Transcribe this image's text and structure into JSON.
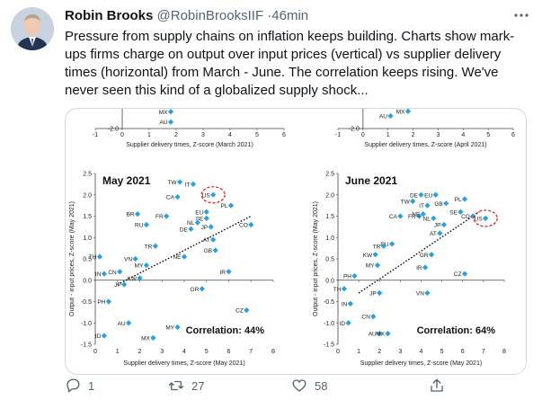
{
  "tweet": {
    "author_name": "Robin Brooks",
    "author_handle": "@RobinBrooksIIF",
    "separator": "·",
    "time": "46min",
    "text": "Pressure from supply chains on inflation keeps building. Charts show mark-ups firms charge on output over input prices (vertical) vs supplier delivery times (horizontal) from March - June. The correlation keeps rising. We've never seen this kind of a globalized supply shock...",
    "replies": "1",
    "retweets": "27",
    "likes": "58"
  },
  "icons": [
    "avatar",
    "more-icon",
    "reply-icon",
    "retweet-icon",
    "like-icon",
    "share-icon"
  ],
  "colors": {
    "marker": "#2aa0e0",
    "trend": "#000000",
    "highlight": "#e02020",
    "text": "#0f1419",
    "muted": "#536471"
  },
  "chart_data": [
    {
      "type": "scatter",
      "title": "",
      "xlabel": "Supplier delivery times, Z-score (March 2021)",
      "ylabel": "",
      "xlim": [
        -1,
        6
      ],
      "ylim": [
        -2.0,
        -1.5
      ],
      "xticks": [
        "-1",
        "0",
        "1",
        "2",
        "3",
        "4",
        "5",
        "6"
      ],
      "yticks": [
        "-1.5",
        "-2.0"
      ],
      "points": [
        {
          "label": "MX",
          "x": 1.8,
          "y": -1.64
        },
        {
          "label": "AU",
          "x": 1.8,
          "y": -1.86
        }
      ]
    },
    {
      "type": "scatter",
      "title": "",
      "xlabel": "Supplier delivery times, Z-score (April 2021)",
      "ylabel": "",
      "xlim": [
        -1,
        6
      ],
      "ylim": [
        -2.0,
        -1.5
      ],
      "xticks": [
        "-1",
        "0",
        "1",
        "2",
        "3",
        "4",
        "5",
        "6"
      ],
      "yticks": [
        "-1.5",
        "-2.0"
      ],
      "points": [
        {
          "label": "MX",
          "x": 1.8,
          "y": -1.63
        },
        {
          "label": "AU",
          "x": 1.1,
          "y": -1.73
        }
      ]
    },
    {
      "type": "scatter",
      "title": "May 2021",
      "xlabel": "Supplier delivery times, Z-score (May 2021)",
      "ylabel": "Output - input prices, Z-score (May 2021)",
      "annotation": "Correlation: 44%",
      "highlight": "US",
      "xlim": [
        0,
        8
      ],
      "ylim": [
        -1.5,
        2.5
      ],
      "xticks": [
        "0",
        "1",
        "2",
        "3",
        "4",
        "5",
        "6",
        "7",
        "8"
      ],
      "yticks": [
        "2.5",
        "2.0",
        "1.5",
        "1.0",
        "0.5",
        "0.0",
        "-0.5",
        "-1.0",
        "-1.5"
      ],
      "trend": {
        "x1": 1.0,
        "y1": -0.1,
        "x2": 7.0,
        "y2": 1.5
      },
      "points": [
        {
          "label": "TW",
          "x": 3.8,
          "y": 2.3
        },
        {
          "label": "IT",
          "x": 4.4,
          "y": 2.25
        },
        {
          "label": "US",
          "x": 5.3,
          "y": 2.0
        },
        {
          "label": "CA",
          "x": 3.7,
          "y": 1.95
        },
        {
          "label": "PL",
          "x": 6.1,
          "y": 1.75
        },
        {
          "label": "EU",
          "x": 5.0,
          "y": 1.6
        },
        {
          "label": "BR",
          "x": 1.9,
          "y": 1.55
        },
        {
          "label": "FR",
          "x": 3.2,
          "y": 1.5
        },
        {
          "label": "SE",
          "x": 5.0,
          "y": 1.45
        },
        {
          "label": "RU",
          "x": 2.3,
          "y": 1.3
        },
        {
          "label": "DE",
          "x": 4.3,
          "y": 1.2
        },
        {
          "label": "JP",
          "x": 5.2,
          "y": 1.25
        },
        {
          "label": "CO",
          "x": 7.0,
          "y": 1.3
        },
        {
          "label": "NL",
          "x": 4.6,
          "y": 1.35
        },
        {
          "label": "AT",
          "x": 5.3,
          "y": 0.95
        },
        {
          "label": "TR",
          "x": 2.7,
          "y": 0.8
        },
        {
          "label": "GB",
          "x": 5.4,
          "y": 0.7
        },
        {
          "label": "NE",
          "x": 4.0,
          "y": 0.55
        },
        {
          "label": "TH",
          "x": 0.2,
          "y": 0.55
        },
        {
          "label": "VN",
          "x": 1.8,
          "y": 0.5
        },
        {
          "label": "CN",
          "x": 1.1,
          "y": 0.2
        },
        {
          "label": "MY",
          "x": 2.3,
          "y": 0.35
        },
        {
          "label": "IN",
          "x": 0.4,
          "y": 0.15
        },
        {
          "label": "KW",
          "x": 2.0,
          "y": 0.05
        },
        {
          "label": "IR",
          "x": 6.0,
          "y": 0.2
        },
        {
          "label": "JP",
          "x": 1.3,
          "y": -0.1
        },
        {
          "label": "GR",
          "x": 4.8,
          "y": -0.2
        },
        {
          "label": "PH",
          "x": 0.6,
          "y": -0.5
        },
        {
          "label": "CZ",
          "x": 6.8,
          "y": -0.7
        },
        {
          "label": "AU",
          "x": 1.5,
          "y": -1.0
        },
        {
          "label": "MY",
          "x": 3.7,
          "y": -1.1
        },
        {
          "label": "MX",
          "x": 2.6,
          "y": -1.35
        },
        {
          "label": "ID",
          "x": 0.4,
          "y": -1.3
        }
      ]
    },
    {
      "type": "scatter",
      "title": "June 2021",
      "xlabel": "Supplier delivery times, Z-score (May 2021)",
      "ylabel": "Output - input prices, Z-score (May 2021)",
      "annotation": "Correlation: 64%",
      "highlight": "US",
      "xlim": [
        0,
        8
      ],
      "ylim": [
        -1.5,
        2.5
      ],
      "xticks": [
        "0",
        "1",
        "2",
        "3",
        "4",
        "5",
        "6",
        "7",
        "8"
      ],
      "yticks": [
        "2.5",
        "2.0",
        "1.5",
        "1.0",
        "0.5",
        "0.0",
        "-0.5",
        "-1.0",
        "-1.5"
      ],
      "trend": {
        "x1": 1.0,
        "y1": -0.3,
        "x2": 6.8,
        "y2": 1.6
      },
      "points": [
        {
          "label": "DE",
          "x": 4.0,
          "y": 2.0
        },
        {
          "label": "EU",
          "x": 4.7,
          "y": 2.0
        },
        {
          "label": "PL",
          "x": 6.1,
          "y": 1.9
        },
        {
          "label": "TW",
          "x": 3.6,
          "y": 1.85
        },
        {
          "label": "GB",
          "x": 5.2,
          "y": 1.8
        },
        {
          "label": "IT",
          "x": 4.3,
          "y": 1.75
        },
        {
          "label": "SE",
          "x": 5.9,
          "y": 1.6
        },
        {
          "label": "FR",
          "x": 3.9,
          "y": 1.5
        },
        {
          "label": "CA",
          "x": 3.0,
          "y": 1.5
        },
        {
          "label": "NE",
          "x": 4.1,
          "y": 1.55
        },
        {
          "label": "NL",
          "x": 4.6,
          "y": 1.45
        },
        {
          "label": "JP",
          "x": 5.1,
          "y": 1.3
        },
        {
          "label": "CO",
          "x": 6.5,
          "y": 1.5
        },
        {
          "label": "US",
          "x": 7.1,
          "y": 1.45
        },
        {
          "label": "AT",
          "x": 4.9,
          "y": 1.1
        },
        {
          "label": "RU",
          "x": 2.6,
          "y": 0.85
        },
        {
          "label": "TR",
          "x": 2.2,
          "y": 0.8
        },
        {
          "label": "GR",
          "x": 4.5,
          "y": 0.6
        },
        {
          "label": "KW",
          "x": 1.8,
          "y": 0.6
        },
        {
          "label": "MY",
          "x": 1.9,
          "y": 0.35
        },
        {
          "label": "IR",
          "x": 4.2,
          "y": 0.3
        },
        {
          "label": "PH",
          "x": 0.8,
          "y": 0.1
        },
        {
          "label": "CZ",
          "x": 6.1,
          "y": 0.15
        },
        {
          "label": "TH",
          "x": 0.3,
          "y": -0.2
        },
        {
          "label": "JP",
          "x": 2.0,
          "y": -0.3
        },
        {
          "label": "VN",
          "x": 4.3,
          "y": -0.3
        },
        {
          "label": "IN",
          "x": 0.6,
          "y": -0.55
        },
        {
          "label": "CN",
          "x": 1.7,
          "y": -0.85
        },
        {
          "label": "ID",
          "x": 0.5,
          "y": -1.0
        },
        {
          "label": "AU",
          "x": 2.0,
          "y": -1.25
        },
        {
          "label": "MX",
          "x": 2.4,
          "y": -1.25
        }
      ]
    }
  ]
}
